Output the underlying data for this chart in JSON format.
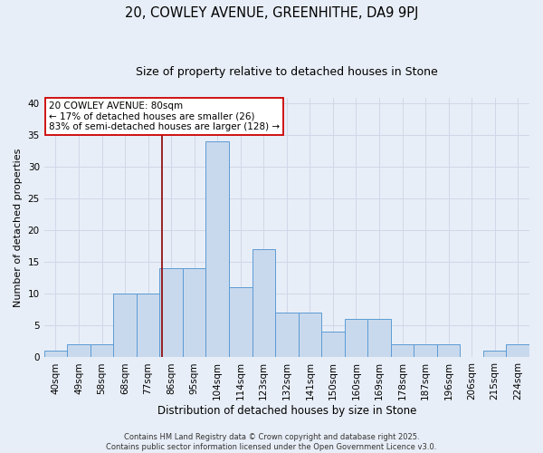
{
  "title_line1": "20, COWLEY AVENUE, GREENHITHE, DA9 9PJ",
  "title_line2": "Size of property relative to detached houses in Stone",
  "xlabel": "Distribution of detached houses by size in Stone",
  "ylabel": "Number of detached properties",
  "bar_labels": [
    "40sqm",
    "49sqm",
    "58sqm",
    "68sqm",
    "77sqm",
    "86sqm",
    "95sqm",
    "104sqm",
    "114sqm",
    "123sqm",
    "132sqm",
    "141sqm",
    "150sqm",
    "160sqm",
    "169sqm",
    "178sqm",
    "187sqm",
    "196sqm",
    "206sqm",
    "215sqm",
    "224sqm"
  ],
  "bar_values": [
    1,
    2,
    2,
    10,
    10,
    14,
    14,
    34,
    11,
    17,
    7,
    7,
    4,
    6,
    6,
    2,
    2,
    2,
    0,
    1,
    2
  ],
  "bar_color": "#c9d9ed",
  "bar_edge_color": "#5b9bd5",
  "grid_color": "#d0d8e8",
  "bg_color": "#e8eef7",
  "vline_x": 4.6,
  "vline_color": "#8b0000",
  "annotation_text": "20 COWLEY AVENUE: 80sqm\n← 17% of detached houses are smaller (26)\n83% of semi-detached houses are larger (128) →",
  "annotation_box_color": "#ffffff",
  "annotation_box_edge_color": "#cc0000",
  "footer_text": "Contains HM Land Registry data © Crown copyright and database right 2025.\nContains public sector information licensed under the Open Government Licence v3.0.",
  "ylim": [
    0,
    41
  ],
  "yticks": [
    0,
    5,
    10,
    15,
    20,
    25,
    30,
    35,
    40
  ],
  "title1_fontsize": 10.5,
  "title2_fontsize": 9,
  "xlabel_fontsize": 8.5,
  "ylabel_fontsize": 8,
  "tick_fontsize": 7.5,
  "footer_fontsize": 6
}
